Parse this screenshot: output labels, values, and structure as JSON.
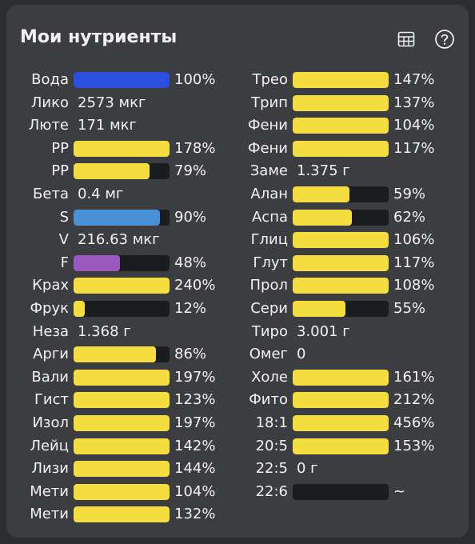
{
  "header": {
    "title": "Мои нутриенты",
    "table_icon": "table-icon",
    "help_icon": "help-icon"
  },
  "colors": {
    "yellow": "#f4dd3e",
    "blue": "#2c4fe0",
    "light_blue": "#4a90d4",
    "purple": "#9a58c0",
    "track": "#1b1c1f",
    "card": "#3b3d40"
  },
  "left": [
    {
      "label": "Вода",
      "type": "bar",
      "fill": 1.0,
      "color": "blue",
      "value": "100%"
    },
    {
      "label": "Лико",
      "type": "text",
      "value": "2573 мкг"
    },
    {
      "label": "Люте",
      "type": "text",
      "value": "171 мкг"
    },
    {
      "label": "PP",
      "type": "bar",
      "fill": 1.0,
      "color": "yellow",
      "value": "178%"
    },
    {
      "label": "PP",
      "type": "bar",
      "fill": 0.79,
      "color": "yellow",
      "value": "79%"
    },
    {
      "label": "Бета",
      "type": "text",
      "value": "0.4 мг"
    },
    {
      "label": "S",
      "type": "bar",
      "fill": 0.9,
      "color": "light_blue",
      "value": "90%"
    },
    {
      "label": "V",
      "type": "text",
      "value": "216.63 мкг"
    },
    {
      "label": "F",
      "type": "bar",
      "fill": 0.48,
      "color": "purple",
      "value": "48%"
    },
    {
      "label": "Крах",
      "type": "bar",
      "fill": 1.0,
      "color": "yellow",
      "value": "240%"
    },
    {
      "label": "Фрук",
      "type": "bar",
      "fill": 0.12,
      "color": "yellow",
      "value": "12%"
    },
    {
      "label": "Неза",
      "type": "text",
      "value": "1.368 г"
    },
    {
      "label": "Арги",
      "type": "bar",
      "fill": 0.86,
      "color": "yellow",
      "value": "86%"
    },
    {
      "label": "Вали",
      "type": "bar",
      "fill": 1.0,
      "color": "yellow",
      "value": "197%"
    },
    {
      "label": "Гист",
      "type": "bar",
      "fill": 1.0,
      "color": "yellow",
      "value": "123%"
    },
    {
      "label": "Изол",
      "type": "bar",
      "fill": 1.0,
      "color": "yellow",
      "value": "197%"
    },
    {
      "label": "Лейц",
      "type": "bar",
      "fill": 1.0,
      "color": "yellow",
      "value": "142%"
    },
    {
      "label": "Лизи",
      "type": "bar",
      "fill": 1.0,
      "color": "yellow",
      "value": "144%"
    },
    {
      "label": "Мети",
      "type": "bar",
      "fill": 1.0,
      "color": "yellow",
      "value": "104%"
    },
    {
      "label": "Мети",
      "type": "bar",
      "fill": 1.0,
      "color": "yellow",
      "value": "132%"
    }
  ],
  "right": [
    {
      "label": "Трео",
      "type": "bar",
      "fill": 1.0,
      "color": "yellow",
      "value": "147%"
    },
    {
      "label": "Трип",
      "type": "bar",
      "fill": 1.0,
      "color": "yellow",
      "value": "137%"
    },
    {
      "label": "Фени",
      "type": "bar",
      "fill": 1.0,
      "color": "yellow",
      "value": "104%"
    },
    {
      "label": "Фени",
      "type": "bar",
      "fill": 1.0,
      "color": "yellow",
      "value": "117%"
    },
    {
      "label": "Заме",
      "type": "text",
      "value": "1.375 г"
    },
    {
      "label": "Алан",
      "type": "bar",
      "fill": 0.59,
      "color": "yellow",
      "value": "59%"
    },
    {
      "label": "Аспа",
      "type": "bar",
      "fill": 0.62,
      "color": "yellow",
      "value": "62%"
    },
    {
      "label": "Глиц",
      "type": "bar",
      "fill": 1.0,
      "color": "yellow",
      "value": "106%"
    },
    {
      "label": "Глут",
      "type": "bar",
      "fill": 1.0,
      "color": "yellow",
      "value": "117%"
    },
    {
      "label": "Прол",
      "type": "bar",
      "fill": 1.0,
      "color": "yellow",
      "value": "108%"
    },
    {
      "label": "Сери",
      "type": "bar",
      "fill": 0.55,
      "color": "yellow",
      "value": "55%"
    },
    {
      "label": "Тиро",
      "type": "text",
      "value": "3.001 г"
    },
    {
      "label": "Омег",
      "type": "text",
      "value": "0"
    },
    {
      "label": "Холе",
      "type": "bar",
      "fill": 1.0,
      "color": "yellow",
      "value": "161%"
    },
    {
      "label": "Фито",
      "type": "bar",
      "fill": 1.0,
      "color": "yellow",
      "value": "212%"
    },
    {
      "label": "18:1",
      "type": "bar",
      "fill": 1.0,
      "color": "yellow",
      "value": "456%"
    },
    {
      "label": "20:5",
      "type": "bar",
      "fill": 1.0,
      "color": "yellow",
      "value": "153%"
    },
    {
      "label": "22:5",
      "type": "text",
      "value": "0 г"
    },
    {
      "label": "22:6",
      "type": "bar",
      "fill": 0.0,
      "color": "yellow",
      "value": "~"
    }
  ]
}
